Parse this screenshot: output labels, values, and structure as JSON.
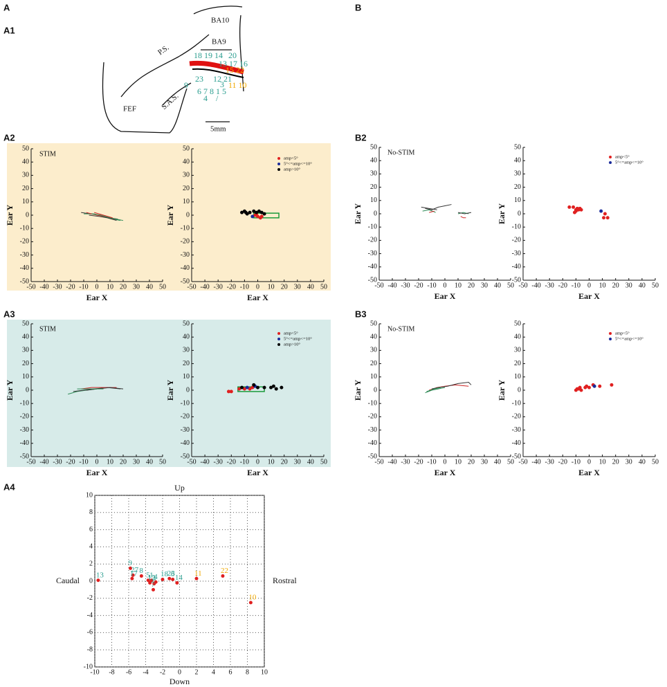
{
  "panel_labels": [
    "A",
    "B",
    "A1",
    "A2",
    "A3",
    "A4",
    "B2",
    "B3"
  ],
  "diagram": {
    "regions": [
      "BA10",
      "BA9",
      "P.S.",
      "S.A.S.",
      "FEF"
    ],
    "scale": "5mm",
    "sites": [
      "18 19 14",
      "20",
      "13 17 16",
      "15 22",
      "23",
      "12 21",
      "9",
      "3",
      "11 10",
      "6 7 8 1 5",
      "4",
      "/"
    ]
  },
  "chart_data": [
    {
      "type": "line",
      "annotation": "STIM",
      "xlabel": "Ear X",
      "ylabel": "Ear Y",
      "xlim": [
        -50,
        50
      ],
      "ylim": [
        -50,
        50
      ],
      "xticks": [
        -50,
        -40,
        -30,
        -20,
        -10,
        0,
        10,
        20,
        30,
        40,
        50
      ],
      "yticks": [
        -50,
        -40,
        -30,
        -20,
        -10,
        0,
        10,
        20,
        30,
        40,
        50
      ],
      "series": [
        {
          "color": "#333333",
          "x": [
            -12,
            -5,
            2,
            10,
            16
          ],
          "values": [
            2,
            1,
            0,
            -2,
            -3
          ]
        },
        {
          "color": "#2e8b57",
          "x": [
            -10,
            -2,
            5,
            12,
            18
          ],
          "values": [
            1,
            1,
            -1,
            -3,
            -4
          ]
        },
        {
          "color": "#cc2222",
          "x": [
            -8,
            0,
            6,
            14
          ],
          "values": [
            2,
            0,
            -1,
            -3
          ]
        },
        {
          "color": "#333333",
          "x": [
            -6,
            2,
            8,
            15
          ],
          "values": [
            0,
            -1,
            -2,
            -4
          ]
        },
        {
          "color": "#2e8b57",
          "x": [
            -4,
            3,
            10,
            20
          ],
          "values": [
            1,
            0,
            -2,
            -4
          ]
        },
        {
          "color": "#cc2222",
          "x": [
            -2,
            5,
            12
          ],
          "values": [
            2,
            0,
            -2
          ]
        }
      ]
    },
    {
      "type": "scatter",
      "xlim": [
        -50,
        50
      ],
      "ylim": [
        -50,
        50
      ],
      "xticks": [
        -50,
        -40,
        -30,
        -20,
        -10,
        0,
        10,
        20,
        30,
        40,
        50
      ],
      "yticks": [
        -50,
        -40,
        -30,
        -20,
        -10,
        0,
        10,
        20,
        30,
        40,
        50
      ],
      "xlabel": "Ear X",
      "ylabel": "Ear Y",
      "legend": "upper right",
      "box": {
        "color": "#1a9a3a",
        "x": [
          -3,
          16
        ],
        "y": [
          -2,
          1.5
        ]
      },
      "series": [
        {
          "name": "amp<5°",
          "color": "#e02020",
          "x": [
            -2,
            0,
            2,
            3,
            -1
          ],
          "values": [
            0,
            -1,
            -2,
            -1,
            1
          ]
        },
        {
          "name": "5°<=amp<=10°",
          "color": "#1a2a9a",
          "x": [
            -4
          ],
          "values": [
            -1
          ]
        },
        {
          "name": "amp>10°",
          "color": "#000000",
          "x": [
            -12,
            -10,
            -8,
            -6,
            -3,
            -1,
            1,
            3,
            5,
            -9
          ],
          "values": [
            2,
            3,
            1,
            2,
            3,
            2,
            3,
            2,
            1,
            2
          ]
        }
      ]
    },
    {
      "type": "line",
      "annotation": "STIM",
      "xlabel": "Ear X",
      "ylabel": "Ear Y",
      "xlim": [
        -50,
        50
      ],
      "ylim": [
        -50,
        50
      ],
      "xticks": [
        -50,
        -40,
        -30,
        -20,
        -10,
        0,
        10,
        20,
        30,
        40,
        50
      ],
      "yticks": [
        -50,
        -40,
        -30,
        -20,
        -10,
        0,
        10,
        20,
        30,
        40,
        50
      ],
      "series": [
        {
          "color": "#2e8b57",
          "x": [
            -22,
            -15,
            -8,
            0
          ],
          "values": [
            -3,
            -1,
            0,
            1
          ]
        },
        {
          "color": "#333333",
          "x": [
            -18,
            -10,
            -2,
            8,
            18
          ],
          "values": [
            -1,
            0,
            1,
            2,
            1
          ]
        },
        {
          "color": "#cc2222",
          "x": [
            -12,
            -4,
            5,
            15
          ],
          "values": [
            1,
            2,
            2,
            2
          ]
        },
        {
          "color": "#333333",
          "x": [
            -8,
            0,
            10,
            20
          ],
          "values": [
            0,
            1,
            2,
            1
          ]
        },
        {
          "color": "#2e8b57",
          "x": [
            -15,
            -5,
            5
          ],
          "values": [
            1,
            1,
            1
          ]
        }
      ]
    },
    {
      "type": "scatter",
      "xlim": [
        -50,
        50
      ],
      "ylim": [
        -50,
        50
      ],
      "xticks": [
        -50,
        -40,
        -30,
        -20,
        -10,
        0,
        10,
        20,
        30,
        40,
        50
      ],
      "yticks": [
        -50,
        -40,
        -30,
        -20,
        -10,
        0,
        10,
        20,
        30,
        40,
        50
      ],
      "xlabel": "Ear X",
      "ylabel": "Ear Y",
      "legend": "upper right",
      "box": {
        "color": "#1a9a3a",
        "x": [
          -15,
          5
        ],
        "y": [
          -1,
          2.5
        ]
      },
      "series": [
        {
          "name": "amp<5°",
          "color": "#e02020",
          "x": [
            -22,
            -20,
            -14,
            -10,
            -6,
            -4
          ],
          "values": [
            -1,
            -1,
            1,
            1,
            1,
            2
          ]
        },
        {
          "name": "5°<=amp<=10°",
          "color": "#1a2a9a",
          "x": [
            -8,
            -2
          ],
          "values": [
            2,
            3
          ]
        },
        {
          "name": "amp>10°",
          "color": "#000000",
          "x": [
            -12,
            -3,
            0,
            10,
            12,
            14,
            18,
            5
          ],
          "values": [
            2,
            4,
            2,
            2,
            3,
            1,
            2,
            2
          ]
        }
      ]
    },
    {
      "type": "line",
      "annotation": "No-STIM",
      "xlabel": "Ear X",
      "ylabel": "Ear Y",
      "xlim": [
        -50,
        50
      ],
      "ylim": [
        -50,
        50
      ],
      "xticks": [
        -50,
        -40,
        -30,
        -20,
        -10,
        0,
        10,
        20,
        30,
        40,
        50
      ],
      "yticks": [
        -50,
        -40,
        -30,
        -20,
        -10,
        0,
        10,
        20,
        30,
        40,
        50
      ],
      "series": [
        {
          "color": "#333333",
          "x": [
            -18,
            -12,
            -6
          ],
          "values": [
            5,
            4,
            3
          ]
        },
        {
          "color": "#2e8b57",
          "x": [
            -17,
            -12,
            -7
          ],
          "values": [
            2,
            3,
            1
          ]
        },
        {
          "color": "#333333",
          "x": [
            -15,
            -10,
            -5,
            0,
            5
          ],
          "values": [
            4,
            3,
            5,
            6,
            7
          ]
        },
        {
          "color": "#cc2222",
          "x": [
            -12,
            -8
          ],
          "values": [
            1,
            2
          ]
        },
        {
          "color": "#2e8b57",
          "x": [
            10,
            14,
            18
          ],
          "values": [
            0,
            1,
            0
          ]
        },
        {
          "color": "#cc2222",
          "x": [
            12,
            14,
            16
          ],
          "values": [
            -2,
            -3,
            -3
          ]
        },
        {
          "color": "#333333",
          "x": [
            10,
            15,
            20
          ],
          "values": [
            1,
            0,
            1
          ]
        }
      ]
    },
    {
      "type": "scatter",
      "xlim": [
        -50,
        50
      ],
      "ylim": [
        -50,
        50
      ],
      "xticks": [
        -50,
        -40,
        -30,
        -20,
        -10,
        0,
        10,
        20,
        30,
        40,
        50
      ],
      "yticks": [
        -50,
        -40,
        -30,
        -20,
        -10,
        0,
        10,
        20,
        30,
        40,
        50
      ],
      "xlabel": "Ear X",
      "ylabel": "Ear Y",
      "legend": "upper right",
      "series": [
        {
          "name": "amp<5°",
          "color": "#e02020",
          "x": [
            -15,
            -12,
            -10,
            -11,
            -8,
            -9,
            -7,
            -6,
            -10,
            12,
            14,
            11
          ],
          "values": [
            5,
            5,
            3,
            1,
            3,
            4,
            4,
            3,
            2,
            0,
            -3,
            -3
          ]
        },
        {
          "name": "5°<=amp<=10°",
          "color": "#1a2a9a",
          "x": [
            9
          ],
          "values": [
            2
          ]
        }
      ]
    },
    {
      "type": "line",
      "annotation": "No-STIM",
      "xlabel": "Ear X",
      "ylabel": "Ear Y",
      "xlim": [
        -50,
        50
      ],
      "ylim": [
        -50,
        50
      ],
      "xticks": [
        -50,
        -40,
        -30,
        -20,
        -10,
        0,
        10,
        20,
        30,
        40,
        50
      ],
      "yticks": [
        -50,
        -40,
        -30,
        -20,
        -10,
        0,
        10,
        20,
        30,
        40,
        50
      ],
      "series": [
        {
          "color": "#2e8b57",
          "x": [
            -15,
            -10,
            -5,
            0
          ],
          "values": [
            -2,
            0,
            1,
            2
          ]
        },
        {
          "color": "#cc2222",
          "x": [
            -12,
            -6,
            0,
            8,
            18
          ],
          "values": [
            0,
            2,
            3,
            4,
            3
          ]
        },
        {
          "color": "#333333",
          "x": [
            -10,
            -5,
            2,
            10,
            18,
            20
          ],
          "values": [
            1,
            2,
            3,
            5,
            6,
            4
          ]
        },
        {
          "color": "#2e8b57",
          "x": [
            -14,
            -8,
            -3
          ],
          "values": [
            -1,
            1,
            2
          ]
        }
      ]
    },
    {
      "type": "scatter",
      "xlim": [
        -50,
        50
      ],
      "ylim": [
        -50,
        50
      ],
      "xticks": [
        -50,
        -40,
        -30,
        -20,
        -10,
        0,
        10,
        20,
        30,
        40,
        50
      ],
      "yticks": [
        -50,
        -40,
        -30,
        -20,
        -10,
        0,
        10,
        20,
        30,
        40,
        50
      ],
      "xlabel": "Ear X",
      "ylabel": "Ear Y",
      "legend": "upper right",
      "series": [
        {
          "name": "amp<5°",
          "color": "#e02020",
          "x": [
            -10,
            -8,
            -7,
            -9,
            -6,
            -3,
            -2,
            0,
            8,
            17,
            3
          ],
          "values": [
            0,
            1,
            2,
            1,
            0,
            2,
            3,
            2,
            3,
            4,
            4
          ]
        },
        {
          "name": "5°<=amp<=10°",
          "color": "#1a2a9a",
          "x": [
            4
          ],
          "values": [
            3
          ]
        }
      ]
    },
    {
      "type": "scatter",
      "grid": true,
      "frame": true,
      "top_label": "Up",
      "bottom_label": "Down",
      "left_label": "Caudal",
      "right_label": "Rostral",
      "xlim": [
        -10,
        10
      ],
      "ylim": [
        -10,
        10
      ],
      "xticks": [
        -10,
        -8,
        -6,
        -4,
        -2,
        0,
        2,
        4,
        6,
        8,
        10
      ],
      "yticks": [
        -10,
        -8,
        -6,
        -4,
        -2,
        0,
        2,
        4,
        6,
        8,
        10
      ],
      "series": [
        {
          "color": "#e02020",
          "label_color": "#2a9d8f",
          "x": [
            -9.6,
            -5.8,
            -5.5,
            -5.6,
            -4.5,
            -3.7,
            -3.3,
            -3.5,
            -3.0,
            -3.1,
            -2.8,
            -2.0,
            -1.2,
            -0.8,
            -0.3
          ],
          "values": [
            0.1,
            1.5,
            0.7,
            0.3,
            0.6,
            0.1,
            0.1,
            -0.2,
            -0.3,
            -1.0,
            -0.1,
            0.2,
            0.3,
            0.2,
            -0.2
          ],
          "labels": [
            "13",
            "9",
            "27",
            "17",
            "8",
            "5",
            "1",
            "12",
            "3",
            "7",
            "4",
            "18",
            "23",
            "6",
            "14"
          ]
        },
        {
          "color": "#e02020",
          "label_color": "#f0a800",
          "x": [
            2.0,
            5.1,
            8.4
          ],
          "values": [
            0.3,
            0.6,
            -2.5
          ],
          "labels": [
            "11",
            "22",
            "10"
          ]
        }
      ]
    }
  ]
}
